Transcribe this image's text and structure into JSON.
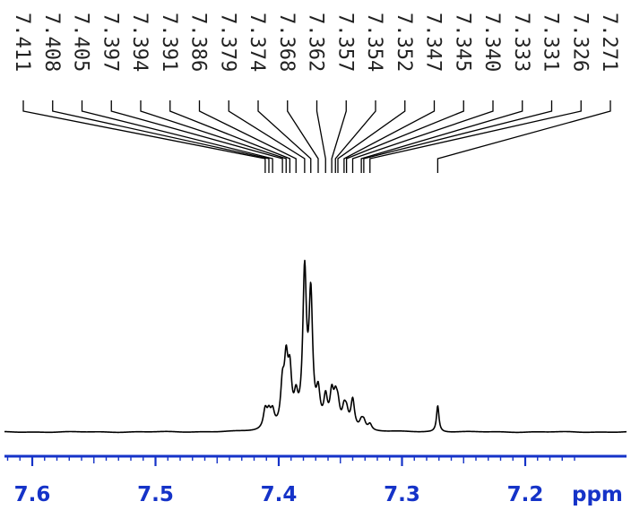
{
  "chart_data": {
    "type": "line",
    "title": "",
    "xlabel": "ppm",
    "ylabel": "",
    "x_direction": "descending",
    "xlim": [
      7.63,
      7.16
    ],
    "grid": false,
    "x_ticks": [
      {
        "value": 7.6,
        "label": "7.6"
      },
      {
        "value": 7.5,
        "label": "7.5"
      },
      {
        "value": 7.4,
        "label": "7.4"
      },
      {
        "value": 7.3,
        "label": "7.3"
      },
      {
        "value": 7.2,
        "label": "7.2"
      }
    ],
    "peak_labels": [
      "7.411",
      "7.408",
      "7.405",
      "7.397",
      "7.394",
      "7.391",
      "7.386",
      "7.379",
      "7.374",
      "7.368",
      "7.362",
      "7.357",
      "7.354",
      "7.352",
      "7.347",
      "7.345",
      "7.340",
      "7.333",
      "7.331",
      "7.326",
      "7.271"
    ],
    "peaks": [
      {
        "ppm": 7.411,
        "height": 0.12
      },
      {
        "ppm": 7.408,
        "height": 0.09
      },
      {
        "ppm": 7.405,
        "height": 0.1
      },
      {
        "ppm": 7.397,
        "height": 0.25
      },
      {
        "ppm": 7.394,
        "height": 0.38
      },
      {
        "ppm": 7.391,
        "height": 0.32
      },
      {
        "ppm": 7.386,
        "height": 0.16
      },
      {
        "ppm": 7.379,
        "height": 0.98
      },
      {
        "ppm": 7.374,
        "height": 0.82
      },
      {
        "ppm": 7.368,
        "height": 0.2
      },
      {
        "ppm": 7.362,
        "height": 0.18
      },
      {
        "ppm": 7.357,
        "height": 0.2
      },
      {
        "ppm": 7.354,
        "height": 0.15
      },
      {
        "ppm": 7.352,
        "height": 0.12
      },
      {
        "ppm": 7.347,
        "height": 0.11
      },
      {
        "ppm": 7.345,
        "height": 0.09
      },
      {
        "ppm": 7.34,
        "height": 0.19
      },
      {
        "ppm": 7.333,
        "height": 0.05
      },
      {
        "ppm": 7.331,
        "height": 0.05
      },
      {
        "ppm": 7.326,
        "height": 0.04
      },
      {
        "ppm": 7.271,
        "height": 0.17
      }
    ],
    "colors": {
      "spectrum": "#000000",
      "axis": "#1533c8",
      "tick_labels": "#1533c8",
      "peak_labels": "#222222"
    }
  }
}
